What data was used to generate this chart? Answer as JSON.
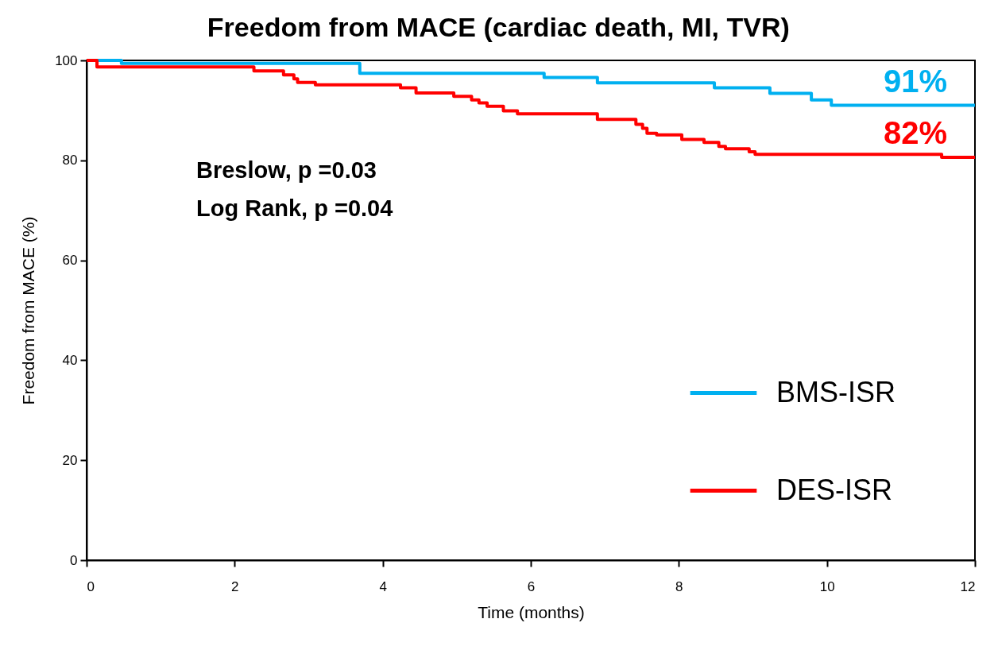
{
  "chart_data": {
    "type": "step",
    "title": "Freedom from MACE (cardiac death, MI, TVR)",
    "xlabel": "Time (months)",
    "ylabel": "Freedom from MACE (%)",
    "xlim": [
      0,
      12
    ],
    "xticks": [
      0,
      2,
      4,
      6,
      8,
      10,
      12
    ],
    "ylim": [
      0,
      100
    ],
    "yticks": [
      0,
      20,
      40,
      60,
      80,
      100
    ],
    "legend": "bottom right",
    "line_style": "solid",
    "annotations": [
      "Breslow, p =0.03",
      "Log Rank, p =0.04",
      {
        "text": "91%",
        "x": 12,
        "y": 91.0
      },
      {
        "text": "82%",
        "x": 12,
        "y": 80.6
      }
    ],
    "series": [
      {
        "name": "BMS-ISR",
        "color": "#00b0f0",
        "x": [
          0,
          0.47,
          3.69,
          6.18,
          6.9,
          8.48,
          9.23,
          9.79,
          10.06,
          12
        ],
        "values": [
          100,
          99.4,
          97.4,
          96.6,
          95.5,
          94.5,
          93.4,
          92.1,
          91.0,
          91.0
        ]
      },
      {
        "name": "DES-ISR",
        "color": "#ff0000",
        "x": [
          0,
          0.14,
          2.26,
          2.66,
          2.8,
          2.85,
          3.09,
          4.24,
          4.45,
          4.96,
          5.2,
          5.3,
          5.41,
          5.63,
          5.82,
          6.9,
          7.42,
          7.51,
          7.57,
          7.7,
          8.04,
          8.34,
          8.54,
          8.63,
          8.95,
          9.03,
          11.55,
          12
        ],
        "values": [
          100,
          98.7,
          97.9,
          97.1,
          96.3,
          95.6,
          95.1,
          94.5,
          93.5,
          92.8,
          92.1,
          91.5,
          90.8,
          89.9,
          89.3,
          88.2,
          87.2,
          86.4,
          85.4,
          85.1,
          84.2,
          83.6,
          82.8,
          82.3,
          81.7,
          81.2,
          80.6,
          80.6
        ]
      }
    ]
  }
}
